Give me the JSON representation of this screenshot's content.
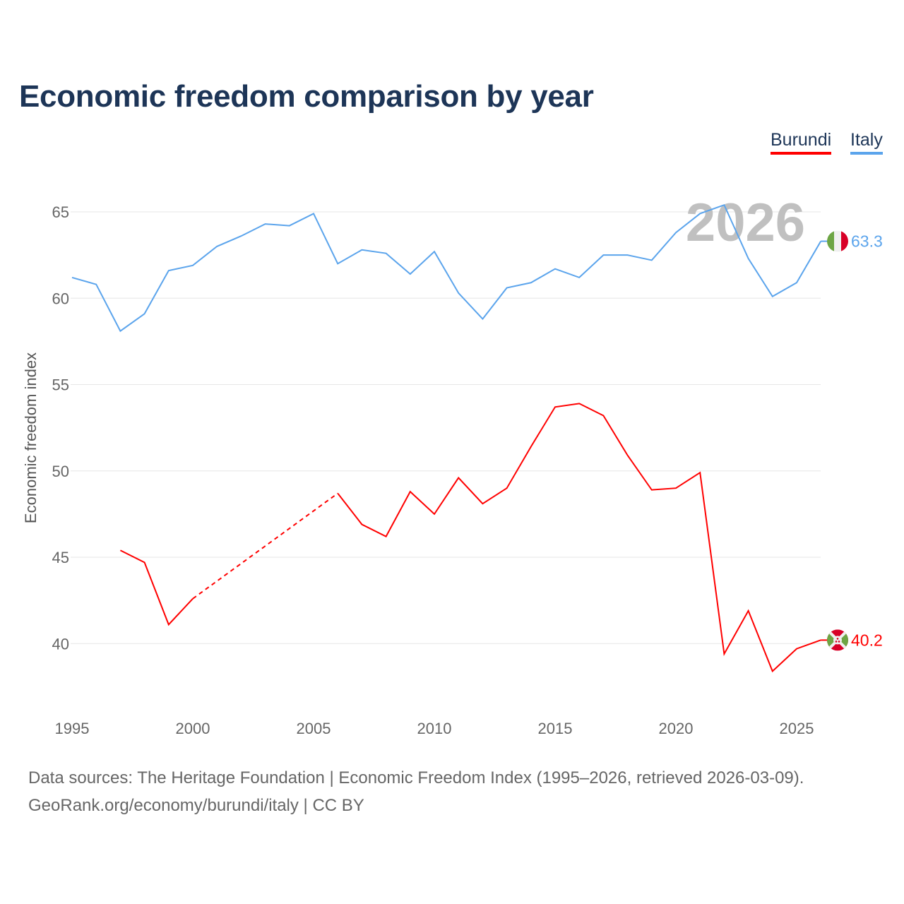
{
  "title": "Economic freedom comparison by year",
  "legend": [
    "Burundi",
    "Italy"
  ],
  "colors": {
    "Burundi": "#ff0000",
    "Italy": "#5ba4ec"
  },
  "year_watermark": "2026",
  "sources": {
    "line1": "Data sources: The Heritage Foundation | Economic Freedom Index (1995–2026, retrieved 2026-03-09).",
    "line2": "GeoRank.org/economy/burundi/italy | CC BY"
  },
  "chart_data": {
    "type": "line",
    "title": "Economic freedom comparison by year",
    "xlabel": "",
    "ylabel": "Economic freedom index",
    "xlim": [
      1995,
      2026
    ],
    "ylim": [
      36.5,
      66.5
    ],
    "xticks": [
      1995,
      2000,
      2005,
      2010,
      2015,
      2020,
      2025
    ],
    "yticks": [
      40,
      45,
      50,
      55,
      60,
      65
    ],
    "grid": true,
    "legend_position": "top-right",
    "x": [
      1995,
      1996,
      1997,
      1998,
      1999,
      2000,
      2001,
      2002,
      2003,
      2004,
      2005,
      2006,
      2007,
      2008,
      2009,
      2010,
      2011,
      2012,
      2013,
      2014,
      2015,
      2016,
      2017,
      2018,
      2019,
      2020,
      2021,
      2022,
      2023,
      2024,
      2025,
      2026
    ],
    "series": [
      {
        "name": "Burundi",
        "end_label": "40.2",
        "values": [
          null,
          null,
          45.4,
          44.7,
          41.1,
          42.6,
          null,
          null,
          null,
          null,
          null,
          48.7,
          46.9,
          46.2,
          48.8,
          47.5,
          49.6,
          48.1,
          49.0,
          51.4,
          53.7,
          53.9,
          53.2,
          50.9,
          48.9,
          49.0,
          49.9,
          39.4,
          41.9,
          38.4,
          39.7,
          40.2
        ]
      },
      {
        "name": "Italy",
        "end_label": "63.3",
        "values": [
          61.2,
          60.8,
          58.1,
          59.1,
          61.6,
          61.9,
          63.0,
          63.6,
          64.3,
          64.2,
          64.9,
          62.0,
          62.8,
          62.6,
          61.4,
          62.7,
          60.3,
          58.8,
          60.6,
          60.9,
          61.7,
          61.2,
          62.5,
          62.5,
          62.2,
          63.8,
          64.9,
          65.4,
          62.3,
          60.1,
          60.9,
          63.3
        ]
      }
    ]
  }
}
